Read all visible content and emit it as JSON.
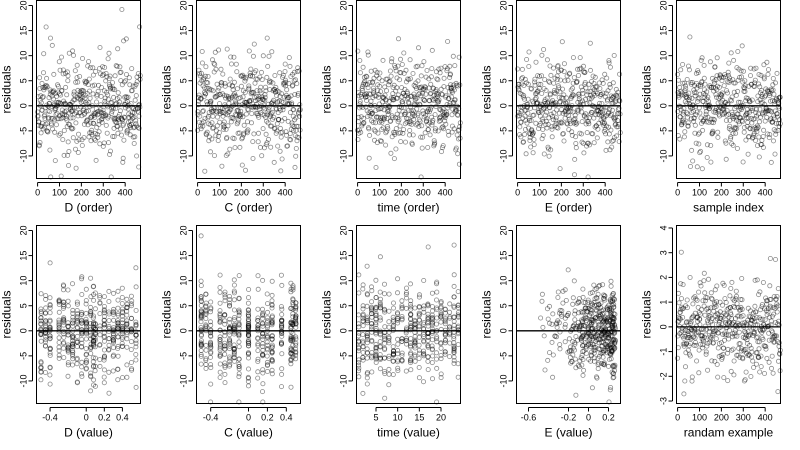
{
  "chart_data": [
    {
      "type": "scatter",
      "id": "d-order",
      "xlabel": "D (order)",
      "ylabel": "residuals",
      "xlim": [
        -5,
        470
      ],
      "ylim": [
        -14.5,
        21
      ],
      "xticks": [
        0,
        100,
        200,
        300,
        400
      ],
      "yticks": [
        -10,
        -5,
        0,
        5,
        10,
        15,
        20
      ],
      "hline": 0,
      "x_kind": "order",
      "n": 470,
      "seed": 11,
      "sd": 5.2
    },
    {
      "type": "scatter",
      "id": "c-order",
      "xlabel": "C (order)",
      "ylabel": "residuals",
      "xlim": [
        -5,
        470
      ],
      "ylim": [
        -14.5,
        21
      ],
      "xticks": [
        0,
        100,
        200,
        300,
        400
      ],
      "yticks": [
        -10,
        -5,
        0,
        5,
        10,
        15,
        20
      ],
      "hline": 0,
      "x_kind": "order",
      "n": 470,
      "seed": 23,
      "sd": 5.2
    },
    {
      "type": "scatter",
      "id": "time-order",
      "xlabel": "time (order)",
      "ylabel": "residuals",
      "xlim": [
        -5,
        470
      ],
      "ylim": [
        -14.5,
        21
      ],
      "xticks": [
        0,
        100,
        200,
        300,
        400
      ],
      "yticks": [
        -10,
        -5,
        0,
        5,
        10,
        15,
        20
      ],
      "hline": 0,
      "x_kind": "order",
      "n": 470,
      "seed": 37,
      "sd": 5.2
    },
    {
      "type": "scatter",
      "id": "e-order",
      "xlabel": "E (order)",
      "ylabel": "residuals",
      "xlim": [
        -5,
        470
      ],
      "ylim": [
        -14.5,
        21
      ],
      "xticks": [
        0,
        100,
        200,
        300,
        400
      ],
      "yticks": [
        -10,
        -5,
        0,
        5,
        10,
        15,
        20
      ],
      "hline": 0,
      "x_kind": "order",
      "n": 470,
      "seed": 41,
      "sd": 5.2
    },
    {
      "type": "scatter",
      "id": "sample-index",
      "xlabel": "sample index",
      "ylabel": "residuals",
      "xlim": [
        -5,
        470
      ],
      "ylim": [
        -14.5,
        21
      ],
      "xticks": [
        0,
        100,
        200,
        300,
        400
      ],
      "yticks": [
        -10,
        -5,
        0,
        5,
        10,
        15,
        20
      ],
      "hline": 0,
      "x_kind": "order",
      "n": 470,
      "seed": 53,
      "sd": 5.2
    },
    {
      "type": "scatter",
      "id": "d-value",
      "xlabel": "D (value)",
      "ylabel": "residuals",
      "xlim": [
        -0.55,
        0.6
      ],
      "ylim": [
        -14.5,
        21
      ],
      "xticks": [
        -0.4,
        0,
        0.2,
        0.4
      ],
      "yticks": [
        -10,
        -5,
        0,
        5,
        10,
        15,
        20
      ],
      "hline": 0,
      "x_kind": "levels",
      "levels": [
        -0.5,
        -0.45,
        -0.4,
        -0.3,
        -0.25,
        -0.2,
        -0.15,
        -0.1,
        -0.05,
        0,
        0.05,
        0.08,
        0.1,
        0.15,
        0.2,
        0.25,
        0.3,
        0.35,
        0.4,
        0.45,
        0.5,
        0.55
      ],
      "n": 470,
      "seed": 61,
      "sd": 5.2
    },
    {
      "type": "scatter",
      "id": "c-value",
      "xlabel": "C (value)",
      "ylabel": "residuals",
      "xlim": [
        -0.55,
        0.55
      ],
      "ylim": [
        -14.5,
        21
      ],
      "xticks": [
        -0.4,
        0,
        0.2,
        0.4
      ],
      "yticks": [
        -10,
        -5,
        0,
        5,
        10,
        15,
        20
      ],
      "hline": 0,
      "x_kind": "levels",
      "levels": [
        -0.5,
        -0.45,
        -0.4,
        -0.3,
        -0.25,
        -0.2,
        -0.15,
        -0.1,
        0,
        0,
        0.1,
        0.15,
        0.2,
        0.25,
        0.35,
        0.45,
        0.47,
        0.5
      ],
      "n": 470,
      "seed": 73,
      "sd": 5.2
    },
    {
      "type": "scatter",
      "id": "time-value",
      "xlabel": "time (value)",
      "ylabel": "residuals",
      "xlim": [
        0.5,
        24.5
      ],
      "ylim": [
        -14.5,
        21
      ],
      "xticks": [
        5,
        10,
        15,
        20
      ],
      "yticks": [
        -10,
        -5,
        0,
        5,
        10,
        15,
        20
      ],
      "hline": 0,
      "x_kind": "levels",
      "levels": [
        1,
        2,
        3,
        4,
        5,
        6,
        7,
        8,
        9,
        10,
        11,
        12,
        13,
        14,
        15,
        16,
        17,
        18,
        19,
        20,
        21,
        22,
        23,
        24
      ],
      "n": 470,
      "seed": 83,
      "sd": 5.2
    },
    {
      "type": "scatter",
      "id": "e-value",
      "xlabel": "E (value)",
      "ylabel": "residuals",
      "xlim": [
        -0.72,
        0.32
      ],
      "ylim": [
        -14.5,
        21
      ],
      "xticks": [
        -0.6,
        -0.2,
        0,
        0.2
      ],
      "yticks": [
        -10,
        -5,
        0,
        5,
        10,
        15,
        20
      ],
      "hline": 0,
      "x_kind": "skew",
      "n": 470,
      "seed": 97,
      "sd": 5.2
    },
    {
      "type": "scatter",
      "id": "random-example",
      "xlabel": "randam example",
      "ylabel": "residuals",
      "xlim": [
        -5,
        470
      ],
      "ylim": [
        -3.1,
        4.1
      ],
      "xticks": [
        0,
        100,
        200,
        300,
        400
      ],
      "yticks": [
        -3,
        -2,
        -1,
        0,
        1,
        2,
        3,
        4
      ],
      "hline": 0,
      "x_kind": "order",
      "n": 470,
      "seed": 101,
      "sd": 1.0
    }
  ]
}
